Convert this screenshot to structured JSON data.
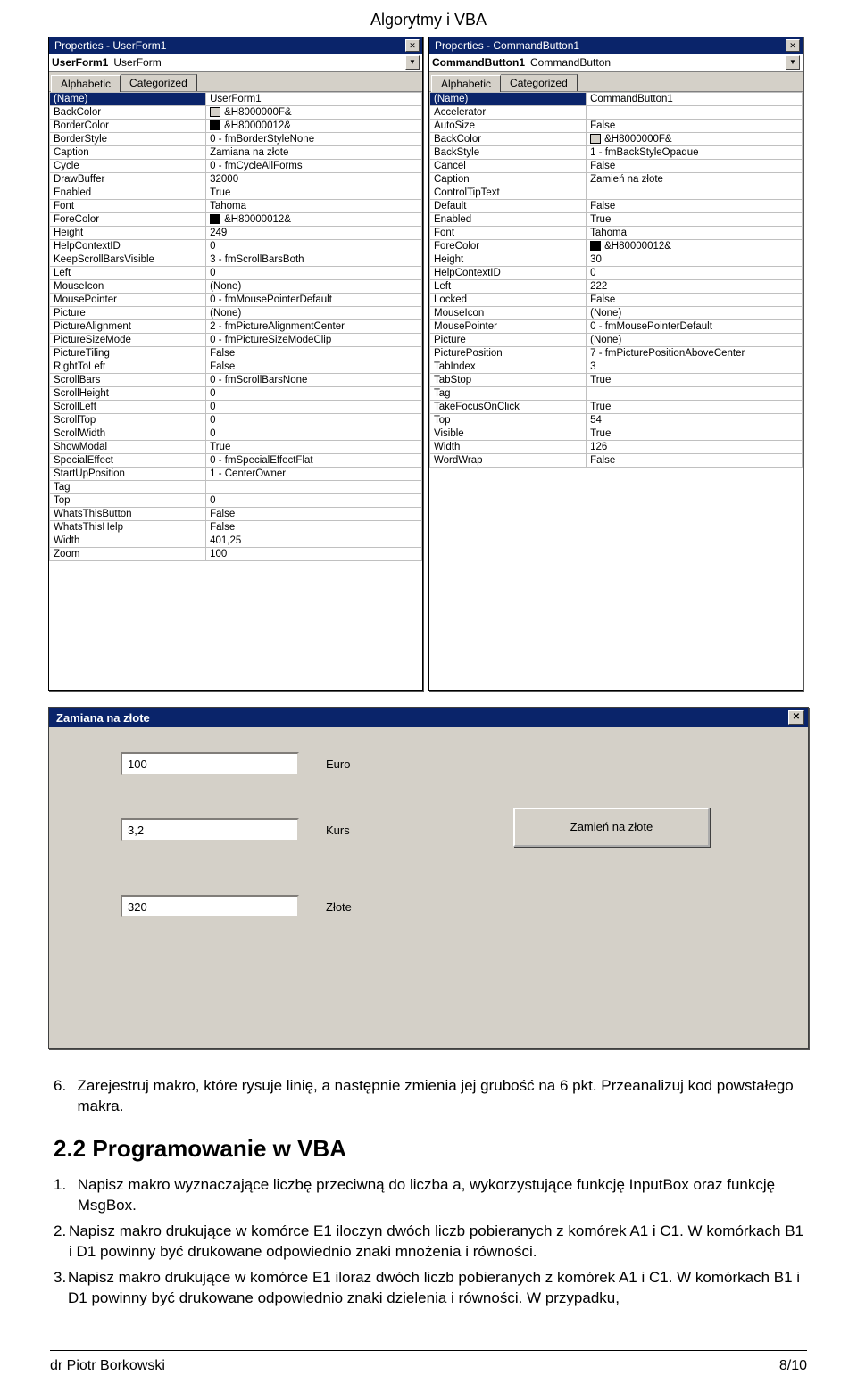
{
  "page_title": "Algorytmy i VBA",
  "panel_left": {
    "title": "Properties - UserForm1",
    "obj_name": "UserForm1",
    "obj_type": "UserForm",
    "tab_alpha": "Alphabetic",
    "tab_cat": "Categorized",
    "rows": [
      {
        "k": "(Name)",
        "v": "UserForm1",
        "sel": true
      },
      {
        "k": "BackColor",
        "v": "&H8000000F&",
        "swatch": "#d4d0c8"
      },
      {
        "k": "BorderColor",
        "v": "&H80000012&",
        "swatch": "#000000"
      },
      {
        "k": "BorderStyle",
        "v": "0 - fmBorderStyleNone"
      },
      {
        "k": "Caption",
        "v": "Zamiana na złote"
      },
      {
        "k": "Cycle",
        "v": "0 - fmCycleAllForms"
      },
      {
        "k": "DrawBuffer",
        "v": "32000"
      },
      {
        "k": "Enabled",
        "v": "True"
      },
      {
        "k": "Font",
        "v": "Tahoma"
      },
      {
        "k": "ForeColor",
        "v": "&H80000012&",
        "swatch": "#000000"
      },
      {
        "k": "Height",
        "v": "249"
      },
      {
        "k": "HelpContextID",
        "v": "0"
      },
      {
        "k": "KeepScrollBarsVisible",
        "v": "3 - fmScrollBarsBoth"
      },
      {
        "k": "Left",
        "v": "0"
      },
      {
        "k": "MouseIcon",
        "v": "(None)"
      },
      {
        "k": "MousePointer",
        "v": "0 - fmMousePointerDefault"
      },
      {
        "k": "Picture",
        "v": "(None)"
      },
      {
        "k": "PictureAlignment",
        "v": "2 - fmPictureAlignmentCenter"
      },
      {
        "k": "PictureSizeMode",
        "v": "0 - fmPictureSizeModeClip"
      },
      {
        "k": "PictureTiling",
        "v": "False"
      },
      {
        "k": "RightToLeft",
        "v": "False"
      },
      {
        "k": "ScrollBars",
        "v": "0 - fmScrollBarsNone"
      },
      {
        "k": "ScrollHeight",
        "v": "0"
      },
      {
        "k": "ScrollLeft",
        "v": "0"
      },
      {
        "k": "ScrollTop",
        "v": "0"
      },
      {
        "k": "ScrollWidth",
        "v": "0"
      },
      {
        "k": "ShowModal",
        "v": "True"
      },
      {
        "k": "SpecialEffect",
        "v": "0 - fmSpecialEffectFlat"
      },
      {
        "k": "StartUpPosition",
        "v": "1 - CenterOwner"
      },
      {
        "k": "Tag",
        "v": ""
      },
      {
        "k": "Top",
        "v": "0"
      },
      {
        "k": "WhatsThisButton",
        "v": "False"
      },
      {
        "k": "WhatsThisHelp",
        "v": "False"
      },
      {
        "k": "Width",
        "v": "401,25"
      },
      {
        "k": "Zoom",
        "v": "100"
      }
    ]
  },
  "panel_right": {
    "title": "Properties - CommandButton1",
    "obj_name": "CommandButton1",
    "obj_type": "CommandButton",
    "tab_alpha": "Alphabetic",
    "tab_cat": "Categorized",
    "rows": [
      {
        "k": "(Name)",
        "v": "CommandButton1",
        "sel": true
      },
      {
        "k": "Accelerator",
        "v": ""
      },
      {
        "k": "AutoSize",
        "v": "False"
      },
      {
        "k": "BackColor",
        "v": "&H8000000F&",
        "swatch": "#d4d0c8"
      },
      {
        "k": "BackStyle",
        "v": "1 - fmBackStyleOpaque"
      },
      {
        "k": "Cancel",
        "v": "False"
      },
      {
        "k": "Caption",
        "v": "Zamień na złote"
      },
      {
        "k": "ControlTipText",
        "v": ""
      },
      {
        "k": "Default",
        "v": "False"
      },
      {
        "k": "Enabled",
        "v": "True"
      },
      {
        "k": "Font",
        "v": "Tahoma"
      },
      {
        "k": "ForeColor",
        "v": "&H80000012&",
        "swatch": "#000000"
      },
      {
        "k": "Height",
        "v": "30"
      },
      {
        "k": "HelpContextID",
        "v": "0"
      },
      {
        "k": "Left",
        "v": "222"
      },
      {
        "k": "Locked",
        "v": "False"
      },
      {
        "k": "MouseIcon",
        "v": "(None)"
      },
      {
        "k": "MousePointer",
        "v": "0 - fmMousePointerDefault"
      },
      {
        "k": "Picture",
        "v": "(None)"
      },
      {
        "k": "PicturePosition",
        "v": "7 - fmPicturePositionAboveCenter"
      },
      {
        "k": "TabIndex",
        "v": "3"
      },
      {
        "k": "TabStop",
        "v": "True"
      },
      {
        "k": "Tag",
        "v": ""
      },
      {
        "k": "TakeFocusOnClick",
        "v": "True"
      },
      {
        "k": "Top",
        "v": "54"
      },
      {
        "k": "Visible",
        "v": "True"
      },
      {
        "k": "Width",
        "v": "126"
      },
      {
        "k": "WordWrap",
        "v": "False"
      }
    ]
  },
  "userform": {
    "title": "Zamiana na złote",
    "field1_value": "100",
    "field1_label": "Euro",
    "field2_value": "3,2",
    "field2_label": "Kurs",
    "field3_value": "320",
    "field3_label": "Złote",
    "button_label": "Zamień na złote"
  },
  "doc": {
    "item6": "Zarejestruj makro, które rysuje linię, a następnie zmienia jej grubość na 6 pkt. Przeanalizuj kod powstałego makra.",
    "heading": "2.2  Programowanie w VBA",
    "item1": "Napisz makro wyznaczające liczbę przeciwną do liczba a, wykorzystujące funkcję InputBox oraz funkcję MsgBox.",
    "item2": "Napisz makro drukujące w komórce E1 iloczyn dwóch liczb pobieranych z komórek A1 i C1. W komórkach B1 i D1 powinny być drukowane odpowiednio znaki mnożenia i równości.",
    "item3": "Napisz makro drukujące w komórce E1 iloraz dwóch liczb pobieranych z komórek A1 i C1. W komórkach B1 i D1 powinny być drukowane odpowiednio znaki dzielenia i równości. W przypadku,"
  },
  "footer": {
    "left": "dr Piotr Borkowski",
    "right": "8/10"
  }
}
